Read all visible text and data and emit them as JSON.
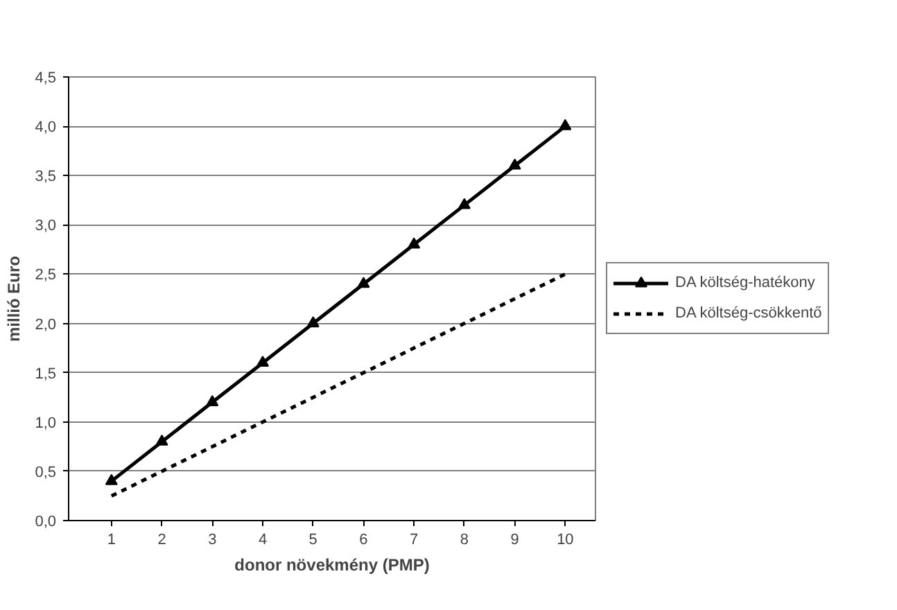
{
  "chart_data": {
    "type": "line",
    "xlabel": "donor növekmény (PMP)",
    "ylabel": "millió Euro",
    "categories": [
      "1",
      "2",
      "3",
      "4",
      "5",
      "6",
      "7",
      "8",
      "9",
      "10"
    ],
    "series": [
      {
        "name": "DA költség-hatékony",
        "color": "#000000",
        "marker": "triangle",
        "line_style": "solid",
        "values": [
          0.4,
          0.8,
          1.2,
          1.6,
          2.0,
          2.4,
          2.8,
          3.2,
          3.6,
          4.0
        ]
      },
      {
        "name": "DA költség-csökkentő",
        "color": "#000000",
        "marker": "none",
        "line_style": "dashed",
        "values": [
          0.25,
          0.5,
          0.75,
          1.0,
          1.25,
          1.5,
          1.75,
          2.0,
          2.25,
          2.5
        ]
      }
    ],
    "ylim": [
      0,
      4.5
    ],
    "yticks": [
      {
        "value": 0,
        "label": "0,0"
      },
      {
        "value": 0.5,
        "label": "0,5"
      },
      {
        "value": 1,
        "label": "1,0"
      },
      {
        "value": 1.5,
        "label": "1,5"
      },
      {
        "value": 2,
        "label": "2,0"
      },
      {
        "value": 2.5,
        "label": "2,5"
      },
      {
        "value": 3,
        "label": "3,0"
      },
      {
        "value": 3.5,
        "label": "3,5"
      },
      {
        "value": 4,
        "label": "4,0"
      },
      {
        "value": 4.5,
        "label": "4,5"
      }
    ],
    "grid": "y",
    "legend": "right"
  }
}
